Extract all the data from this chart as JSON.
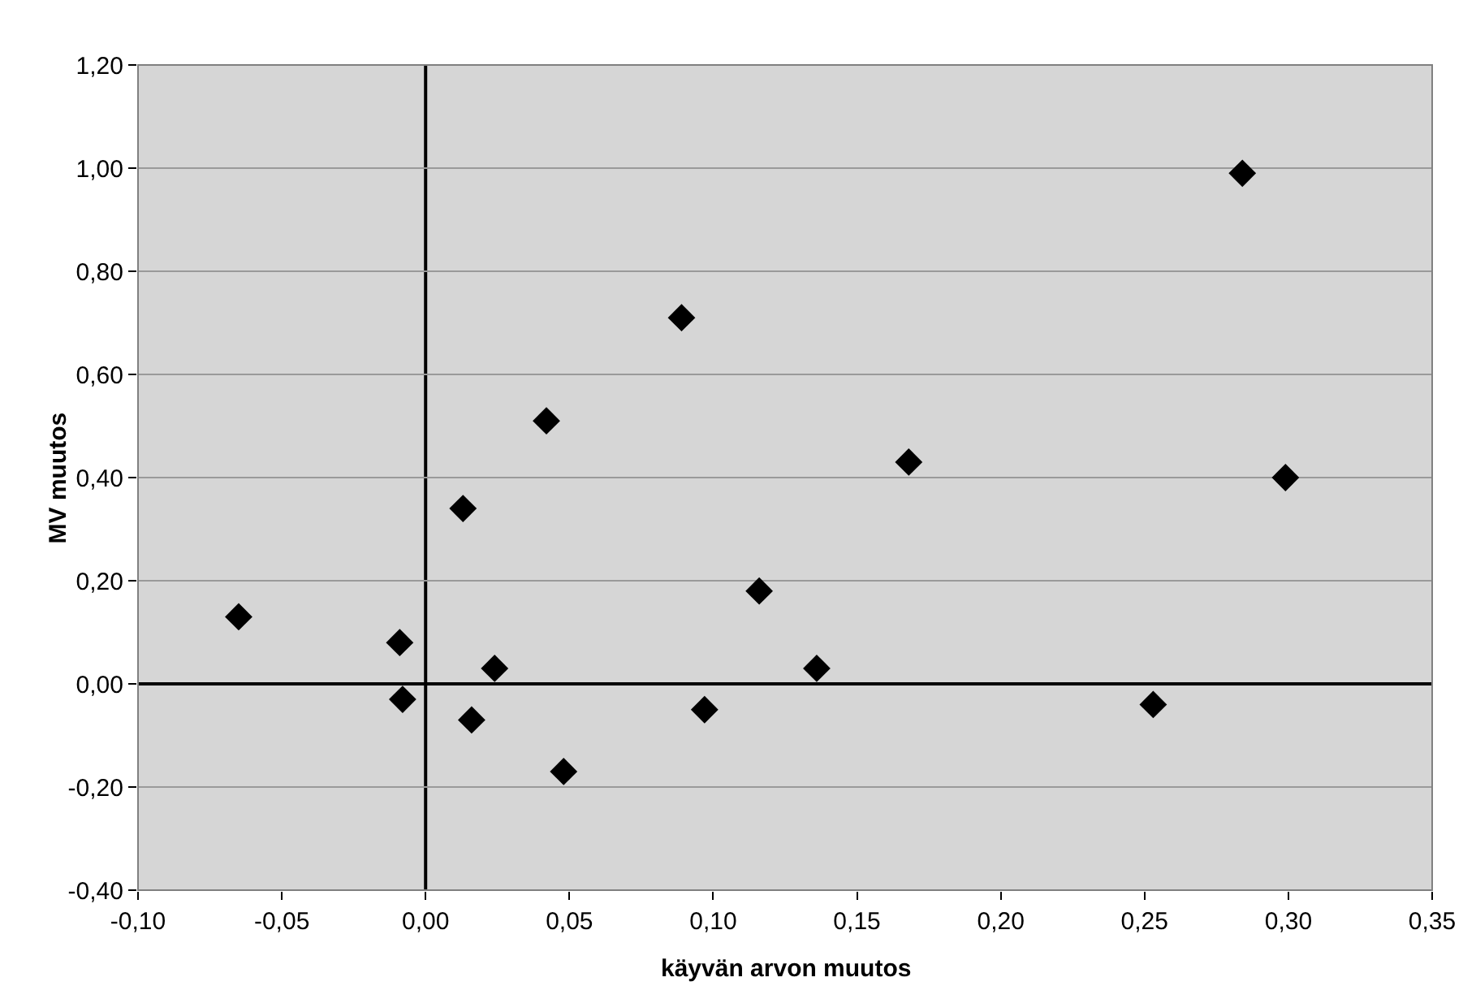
{
  "chart_data": {
    "type": "scatter",
    "xlabel": "käyvän arvon muutos",
    "ylabel": "MV muutos",
    "x": [
      -0.065,
      -0.009,
      -0.008,
      0.013,
      0.016,
      0.024,
      0.042,
      0.048,
      0.089,
      0.097,
      0.116,
      0.136,
      0.168,
      0.253,
      0.284,
      0.299
    ],
    "values": [
      0.13,
      0.08,
      -0.03,
      0.34,
      -0.07,
      0.03,
      0.51,
      -0.17,
      0.71,
      -0.05,
      0.18,
      0.03,
      0.43,
      -0.04,
      0.99,
      0.4
    ],
    "color": "#000000",
    "ref_lines": [
      {
        "axis": "x",
        "value": 0,
        "color": "#000000"
      }
    ],
    "marker": "diamond",
    "grid": "y",
    "legend": false,
    "xlim": [
      -0.1,
      0.35
    ],
    "xticks": [
      {
        "value": -0.1,
        "label": "-0,10"
      },
      {
        "value": -0.05,
        "label": "-0,05"
      },
      {
        "value": 0,
        "label": "0,00"
      },
      {
        "value": 0.05,
        "label": "0,05"
      },
      {
        "value": 0.1,
        "label": "0,10"
      },
      {
        "value": 0.15,
        "label": "0,15"
      },
      {
        "value": 0.2,
        "label": "0,20"
      },
      {
        "value": 0.25,
        "label": "0,25"
      },
      {
        "value": 0.3,
        "label": "0,30"
      },
      {
        "value": 0.35,
        "label": "0,35"
      }
    ],
    "ylim": [
      -0.4,
      1.2
    ],
    "yticks": [
      {
        "value": -0.4,
        "label": "-0,40"
      },
      {
        "value": -0.2,
        "label": "-0,20"
      },
      {
        "value": 0,
        "label": "0,00"
      },
      {
        "value": 0.2,
        "label": "0,20"
      },
      {
        "value": 0.4,
        "label": "0,40"
      },
      {
        "value": 0.6,
        "label": "0,60"
      },
      {
        "value": 0.8,
        "label": "0,80"
      },
      {
        "value": 1.0,
        "label": "1,00"
      },
      {
        "value": 1.2,
        "label": "1,20"
      }
    ]
  }
}
